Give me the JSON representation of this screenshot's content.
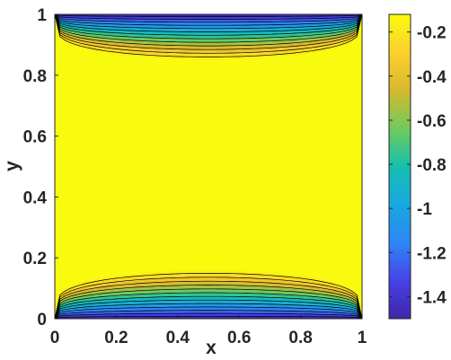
{
  "chart_data": {
    "type": "contour",
    "title": "",
    "xlabel": "x",
    "ylabel": "y",
    "xlim": [
      0,
      1
    ],
    "ylim": [
      0,
      1
    ],
    "xticks": [
      "0",
      "0.2",
      "0.4",
      "0.6",
      "0.8",
      "1"
    ],
    "yticks": [
      "0",
      "0.2",
      "0.4",
      "0.6",
      "0.8",
      "1"
    ],
    "colorbar": {
      "colormap": "parula",
      "range": [
        -1.5,
        -0.12
      ],
      "ticks": [
        "-0.2",
        "-0.4",
        "-0.6",
        "-0.8",
        "-1",
        "-1.2",
        "-1.4"
      ],
      "tick_values": [
        -0.2,
        -0.4,
        -0.6,
        -0.8,
        -1.0,
        -1.2,
        -1.4
      ]
    },
    "field": {
      "description_free": true,
      "bottom_boundary_min": -1.5,
      "top_boundary_min": -1.5,
      "plateau_value": -0.12,
      "boundary_layer_thickness_bottom": 0.16,
      "boundary_layer_thickness_top": 0.15
    },
    "contour_levels": [
      -1.4,
      -1.3,
      -1.2,
      -1.1,
      -1.0,
      -0.9,
      -0.8,
      -0.7,
      -0.6,
      -0.5,
      -0.4,
      -0.3,
      -0.2
    ],
    "grid": false,
    "colors": {
      "low": "#3e26a8",
      "high": "#f9fb0e",
      "contour_line": "#000000"
    }
  }
}
